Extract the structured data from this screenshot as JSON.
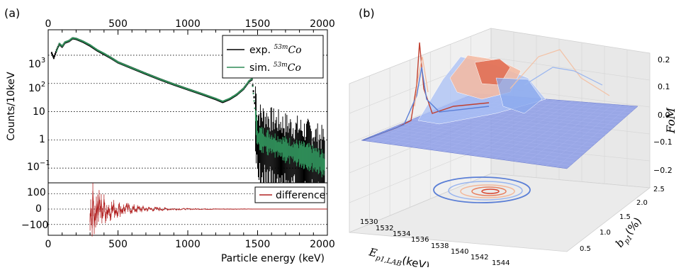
{
  "panel_a": {
    "label": "(a)",
    "top_axis": {
      "ticks": [
        "0",
        "500",
        "1000",
        "1500",
        "2000"
      ]
    },
    "upper": {
      "ylabel": "Counts/10keV",
      "ytick_labels": [
        {
          "base": "10",
          "exp": "3",
          "v": 1000
        },
        {
          "base": "10",
          "exp": "2",
          "v": 100
        },
        {
          "base": "10",
          "exp": "",
          "v": 10
        },
        {
          "base": "1",
          "exp": "",
          "v": 1
        },
        {
          "base": "10",
          "exp": "−1",
          "v": 0.1
        }
      ],
      "legend": {
        "exp_prefix": "exp. ",
        "exp_sup": "53m",
        "exp_suffix": "Co",
        "sim_prefix": "sim. ",
        "sim_sup": "53m",
        "sim_suffix": "Co"
      }
    },
    "lower": {
      "ytick_labels": [
        "100",
        "0",
        "−100"
      ],
      "legend": "difference"
    },
    "xlabel": "Particle energy (keV)",
    "xtick_labels": [
      "0",
      "500",
      "1000",
      "1500",
      "2000"
    ]
  },
  "panel_b": {
    "label": "(b)",
    "xlabel_main": "E",
    "xlabel_sub": "p1,LAB",
    "xlabel_unit": "(keV)",
    "ylabel_main": "b",
    "ylabel_sub": "p1",
    "ylabel_unit": "(%)",
    "zlabel": "FoM",
    "xtick_labels": [
      "1530",
      "1532",
      "1534",
      "1536",
      "1538",
      "1540",
      "1542",
      "1544"
    ],
    "ytick_labels": [
      "0.5",
      "1.0",
      "1.5",
      "2.0",
      "2.5"
    ],
    "ztick_labels": [
      "0.2",
      "0.1",
      "0.0",
      "−0.1",
      "−0.2"
    ]
  },
  "chart_data": [
    {
      "type": "scatter",
      "panel": "a-upper",
      "ylabel": "Counts/10keV",
      "xlabel": "Particle energy (keV)",
      "xlim": [
        0,
        2000
      ],
      "ylim": [
        0.03,
        8000
      ],
      "yscale": "log",
      "grid": "horizontal dotted",
      "legend": "top-right",
      "series": [
        {
          "name": "exp. 53mCo",
          "color": "#000000",
          "points": [
            [
              25,
              1200
            ],
            [
              40,
              800
            ],
            [
              60,
              1500
            ],
            [
              80,
              2500
            ],
            [
              100,
              2000
            ],
            [
              120,
              2800
            ],
            [
              150,
              3200
            ],
            [
              175,
              4000
            ],
            [
              200,
              3800
            ],
            [
              250,
              3000
            ],
            [
              300,
              2200
            ],
            [
              350,
              1500
            ],
            [
              400,
              1100
            ],
            [
              450,
              800
            ],
            [
              500,
              560
            ],
            [
              600,
              350
            ],
            [
              700,
              220
            ],
            [
              800,
              140
            ],
            [
              900,
              92
            ],
            [
              1000,
              62
            ],
            [
              1100,
              42
            ],
            [
              1200,
              28
            ],
            [
              1250,
              22
            ],
            [
              1300,
              28
            ],
            [
              1350,
              40
            ],
            [
              1400,
              65
            ],
            [
              1440,
              120
            ],
            [
              1460,
              140
            ],
            [
              1480,
              20
            ],
            [
              1500,
              1.0
            ],
            [
              1550,
              0.8
            ],
            [
              1600,
              0.6
            ],
            [
              1700,
              0.4
            ],
            [
              1800,
              0.3
            ],
            [
              1900,
              0.2
            ],
            [
              1980,
              0.12
            ]
          ]
        },
        {
          "name": "sim. 53mCo",
          "color": "#2e8b57",
          "points": [
            [
              60,
              1400
            ],
            [
              80,
              2600
            ],
            [
              100,
              2100
            ],
            [
              120,
              2900
            ],
            [
              150,
              3300
            ],
            [
              175,
              4100
            ],
            [
              200,
              3900
            ],
            [
              250,
              3100
            ],
            [
              300,
              2300
            ],
            [
              350,
              1550
            ],
            [
              400,
              1150
            ],
            [
              450,
              820
            ],
            [
              500,
              570
            ],
            [
              600,
              355
            ],
            [
              700,
              225
            ],
            [
              800,
              142
            ],
            [
              900,
              94
            ],
            [
              1000,
              63
            ],
            [
              1100,
              43
            ],
            [
              1200,
              29
            ],
            [
              1250,
              23
            ],
            [
              1300,
              29
            ],
            [
              1350,
              41
            ],
            [
              1400,
              66
            ],
            [
              1440,
              125
            ],
            [
              1460,
              145
            ],
            [
              1500,
              1.2
            ],
            [
              1550,
              0.9
            ],
            [
              1600,
              0.7
            ],
            [
              1700,
              0.45
            ],
            [
              1800,
              0.32
            ],
            [
              1900,
              0.22
            ],
            [
              1980,
              0.13
            ]
          ]
        }
      ]
    },
    {
      "type": "line",
      "panel": "a-lower",
      "xlabel": "Particle energy (keV)",
      "xlim": [
        0,
        2000
      ],
      "ylim": [
        -170,
        170
      ],
      "legend": "top-right",
      "series": [
        {
          "name": "difference",
          "color": "#b22222",
          "points": [
            [
              300,
              140
            ],
            [
              350,
              110
            ],
            [
              400,
              80
            ],
            [
              450,
              55
            ],
            [
              500,
              40
            ],
            [
              600,
              25
            ],
            [
              700,
              15
            ],
            [
              800,
              10
            ],
            [
              900,
              6
            ],
            [
              1000,
              4
            ],
            [
              1200,
              2
            ],
            [
              1400,
              1
            ],
            [
              1500,
              0
            ],
            [
              1600,
              0
            ],
            [
              2000,
              0
            ]
          ]
        }
      ]
    },
    {
      "type": "surface",
      "panel": "b",
      "xlabel": "E p1,LAB (keV)",
      "ylabel": "b p1 (%)",
      "zlabel": "FoM",
      "xlim": [
        1530,
        1544
      ],
      "ylim": [
        0.3,
        2.5
      ],
      "zlim": [
        -0.2,
        0.2
      ],
      "peak": {
        "x": 1540,
        "y": 1.5,
        "z": 0.18
      }
    }
  ]
}
